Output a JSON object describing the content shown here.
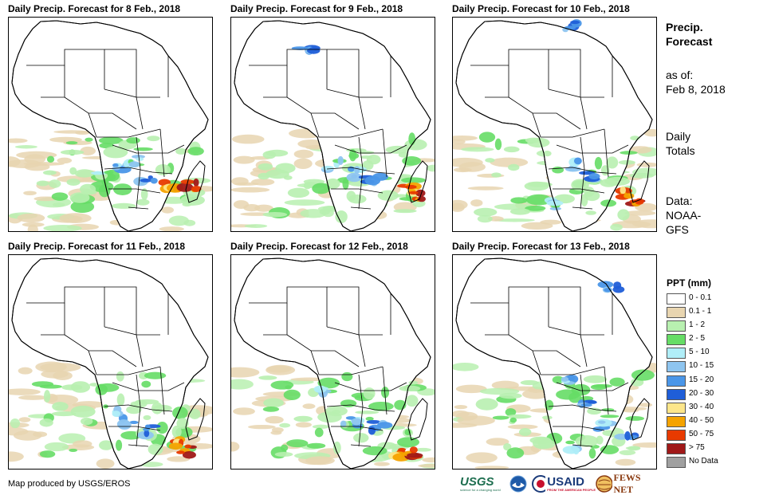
{
  "panels": [
    {
      "title": "Daily Precip. Forecast for 8 Feb., 2018"
    },
    {
      "title": "Daily Precip. Forecast for 9 Feb., 2018"
    },
    {
      "title": "Daily Precip. Forecast for 10 Feb., 2018"
    },
    {
      "title": "Daily Precip. Forecast for 11 Feb., 2018"
    },
    {
      "title": "Daily Precip. Forecast for 12 Feb., 2018"
    },
    {
      "title": "Daily Precip. Forecast for 13 Feb., 2018"
    }
  ],
  "sidebar": {
    "title_line1": "Precip.",
    "title_line2": "Forecast",
    "asof_line1": "as of:",
    "asof_line2": "Feb 8, 2018",
    "totals_line1": "Daily",
    "totals_line2": "Totals",
    "source_line1": "Data:",
    "source_line2": "NOAA-",
    "source_line3": "GFS"
  },
  "legend": {
    "title": "PPT (mm)",
    "items": [
      {
        "label": "0 - 0.1",
        "color": "#ffffff"
      },
      {
        "label": "0.1 - 1",
        "color": "#e8d5b0"
      },
      {
        "label": "1 - 2",
        "color": "#b8f0b0"
      },
      {
        "label": "2 - 5",
        "color": "#66dd66"
      },
      {
        "label": "5 - 10",
        "color": "#b0eef8"
      },
      {
        "label": "10 - 15",
        "color": "#8ec5f0"
      },
      {
        "label": "15 - 20",
        "color": "#4a96e8"
      },
      {
        "label": "20 - 30",
        "color": "#1f5ed8"
      },
      {
        "label": "30 - 40",
        "color": "#fde68a"
      },
      {
        "label": "40 - 50",
        "color": "#f5a300"
      },
      {
        "label": "50 - 75",
        "color": "#e83a00"
      },
      {
        "label": "> 75",
        "color": "#a01818"
      },
      {
        "label": "No Data",
        "color": "#a0a0a0"
      }
    ]
  },
  "credit": "Map produced by USGS/EROS",
  "logos": {
    "usgs": "USGS",
    "usgs_tagline": "science for a changing world",
    "usaid": "USAID",
    "usaid_tagline": "FROM THE AMERICAN PEOPLE",
    "fewsnet": "FEWS NET"
  }
}
